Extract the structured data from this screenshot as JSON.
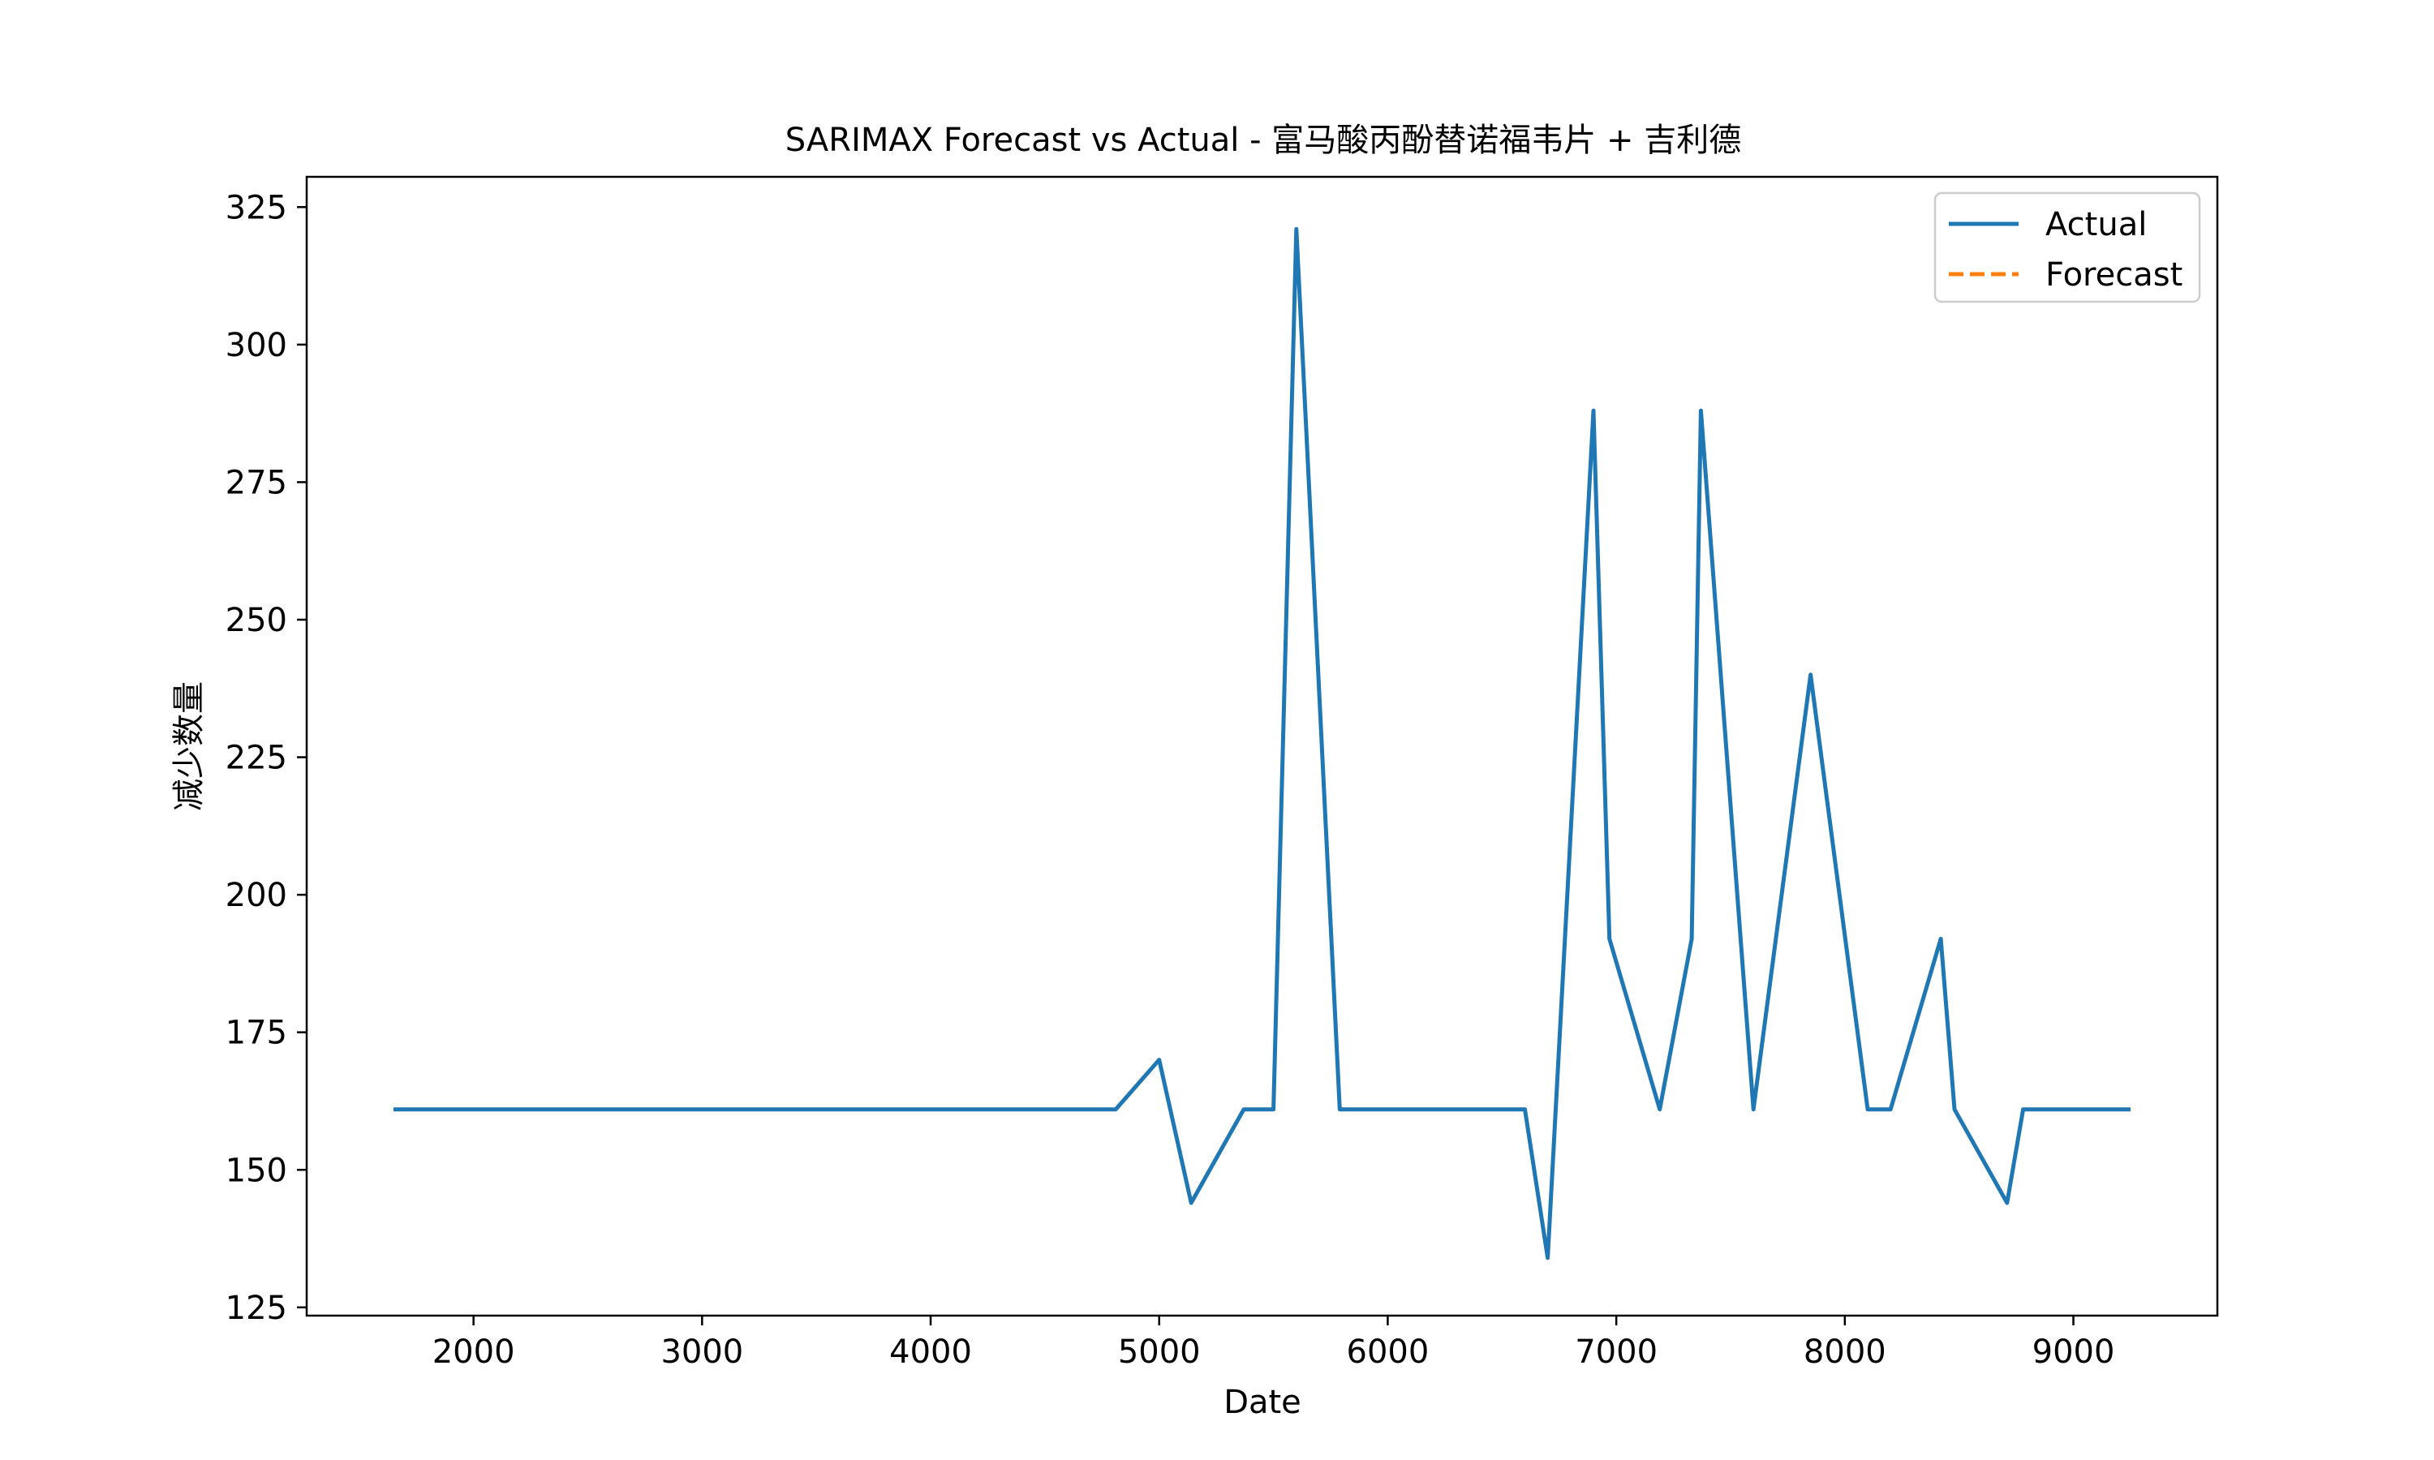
{
  "chart_data": {
    "type": "line",
    "title": "SARIMAX Forecast vs Actual - 富马酸丙酚替诺福韦片 + 吉利德",
    "xlabel": "Date",
    "ylabel": "减少数量",
    "xlim": [
      1270,
      9630
    ],
    "ylim": [
      123.5,
      330.5
    ],
    "xticks": [
      2000,
      3000,
      4000,
      5000,
      6000,
      7000,
      8000,
      9000
    ],
    "yticks": [
      125,
      150,
      175,
      200,
      225,
      250,
      275,
      300,
      325
    ],
    "grid": false,
    "legend_position": "top-right",
    "series": [
      {
        "name": "Actual",
        "color": "#1f77b4",
        "style": "solid",
        "x": [
          1650,
          4810,
          5000,
          5140,
          5370,
          5500,
          5600,
          5790,
          6600,
          6700,
          6900,
          6970,
          7190,
          7330,
          7370,
          7600,
          7850,
          8100,
          8200,
          8420,
          8480,
          8710,
          8780,
          9250
        ],
        "y": [
          161,
          161,
          170,
          144,
          161,
          161,
          321,
          161,
          161,
          134,
          288,
          192,
          161,
          192,
          288,
          161,
          240,
          161,
          161,
          192,
          161,
          144,
          161,
          161
        ]
      },
      {
        "name": "Forecast",
        "color": "#ff7f0e",
        "style": "dashed",
        "x": [],
        "y": []
      }
    ]
  }
}
